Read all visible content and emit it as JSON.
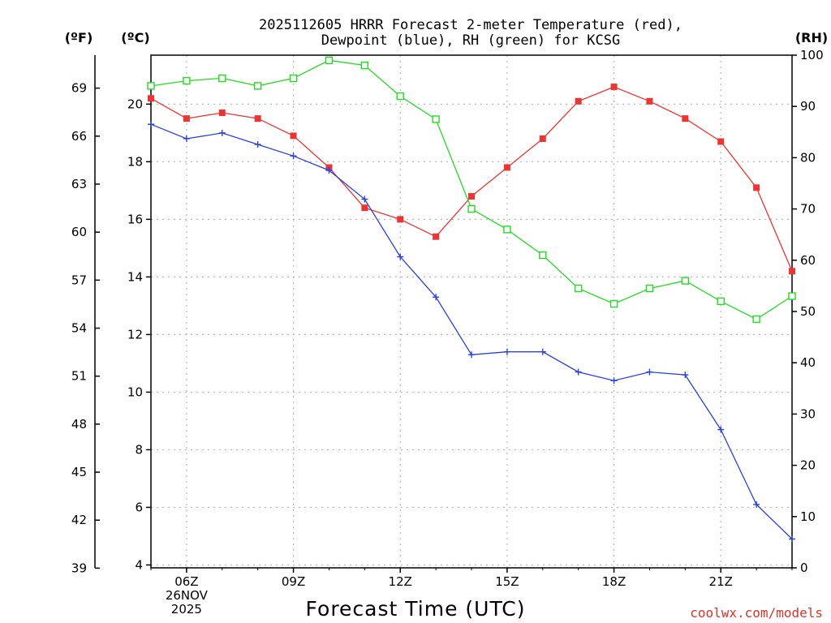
{
  "title_lines": [
    "2025112605 HRRR Forecast 2-meter Temperature (red),",
    "Dewpoint (blue), RH (green) for KCSG"
  ],
  "units": {
    "fahrenheit": "(ºF)",
    "celsius": "(ºC)",
    "rh": "(RH)"
  },
  "xlabel": "Forecast Time (UTC)",
  "credit": "coolwx.com/models",
  "colors": {
    "temperature": "#ee3333",
    "dewpoint": "#2a3fe6",
    "rh": "#22dd22"
  },
  "chart_data": {
    "type": "line",
    "title": "2025112605 HRRR Forecast 2-meter Temperature (red), Dewpoint (blue), RH (green) for KCSG",
    "xlabel": "Forecast Time (UTC)",
    "x_hours_utc": [
      5,
      6,
      7,
      8,
      9,
      10,
      11,
      12,
      13,
      14,
      15,
      16,
      17,
      18,
      19,
      20,
      21,
      22,
      23
    ],
    "x_range": [
      5,
      23
    ],
    "x_ticks": [
      {
        "hour": 6,
        "lines": [
          "06Z",
          "26NOV",
          "2025"
        ]
      },
      {
        "hour": 9,
        "lines": [
          "09Z"
        ]
      },
      {
        "hour": 12,
        "lines": [
          "12Z"
        ]
      },
      {
        "hour": 15,
        "lines": [
          "15Z"
        ]
      },
      {
        "hour": 18,
        "lines": [
          "18Z"
        ]
      },
      {
        "hour": 21,
        "lines": [
          "21Z"
        ]
      }
    ],
    "celsius_axis": {
      "range": [
        3.9,
        21.7
      ],
      "ticks": [
        4,
        6,
        8,
        10,
        12,
        14,
        16,
        18,
        20
      ]
    },
    "fahrenheit_axis": {
      "ticks": [
        39,
        42,
        45,
        48,
        51,
        54,
        57,
        60,
        63,
        66,
        69
      ]
    },
    "rh_axis": {
      "range": [
        0,
        100
      ],
      "ticks": [
        0,
        10,
        20,
        30,
        40,
        50,
        60,
        70,
        80,
        90,
        100
      ]
    },
    "series": [
      {
        "name": "Temperature",
        "axis": "celsius",
        "marker": "filled-square",
        "values": [
          20.2,
          19.5,
          19.7,
          19.5,
          18.9,
          17.8,
          16.4,
          16.0,
          15.4,
          16.8,
          17.8,
          18.8,
          20.1,
          20.6,
          20.1,
          19.5,
          18.7,
          17.1,
          14.2
        ]
      },
      {
        "name": "Dewpoint",
        "axis": "celsius",
        "marker": "plus",
        "values": [
          19.3,
          18.8,
          19.0,
          18.6,
          18.2,
          17.7,
          16.7,
          14.7,
          13.3,
          11.3,
          11.4,
          11.4,
          10.7,
          10.4,
          10.7,
          10.6,
          8.7,
          6.1,
          4.9
        ]
      },
      {
        "name": "RH",
        "axis": "rh",
        "marker": "open-square",
        "values": [
          94,
          95,
          95.5,
          94,
          95.5,
          99,
          98,
          92,
          87.5,
          70,
          66,
          61,
          54.5,
          51.5,
          54.5,
          56,
          52,
          48.5,
          53
        ]
      }
    ]
  }
}
